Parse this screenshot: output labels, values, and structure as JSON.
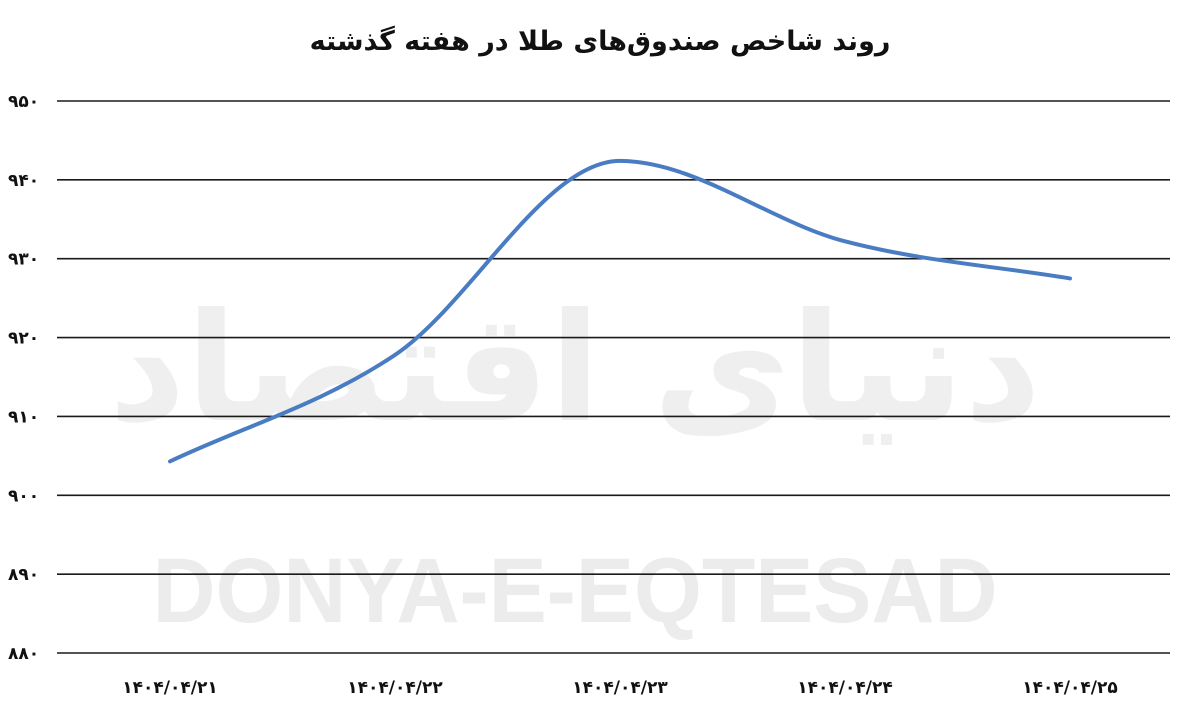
{
  "chart_data": {
    "type": "line",
    "title": "روند شاخص صندوق‌های طلا در هفته گذشته",
    "categories": [
      "۱۴۰۴/۰۴/۲۱",
      "۱۴۰۴/۰۴/۲۲",
      "۱۴۰۴/۰۴/۲۳",
      "۱۴۰۴/۰۴/۲۴",
      "۱۴۰۴/۰۴/۲۵"
    ],
    "series": [
      {
        "values": [
          904.3,
          917.8,
          942.4,
          932.2,
          927.5
        ],
        "color": "#4a7cc3"
      }
    ],
    "ylim": [
      880,
      950
    ],
    "yticks": [
      880,
      890,
      900,
      910,
      920,
      930,
      940,
      950
    ],
    "ytick_labels": [
      "۸۸۰",
      "۸۹۰",
      "۹۰۰",
      "۹۱۰",
      "۹۲۰",
      "۹۳۰",
      "۹۴۰",
      "۹۵۰"
    ],
    "grid": true,
    "legend": "none",
    "smooth": true
  },
  "watermark": {
    "text": "DONYA-E-EQTESAD",
    "logo_text": "دنیای اقتصاد"
  }
}
